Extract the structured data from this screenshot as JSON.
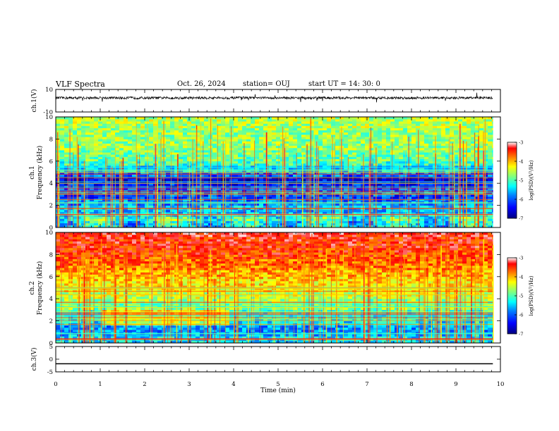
{
  "header": {
    "title": "VLF Spectra",
    "date": "Oct. 26, 2024",
    "station": "station= OUJ",
    "start": "start  UT =   14: 30: 0"
  },
  "chart_data": [
    {
      "type": "line",
      "panel": "ch1-waveform",
      "ylabel": "ch.1(V)",
      "ylim": [
        -10,
        10
      ],
      "yticks": [
        "10",
        "-10"
      ],
      "baseline": 2.5,
      "xlim": [
        0,
        10
      ],
      "x_data_end": 9.83
    },
    {
      "type": "heatmap",
      "panel": "ch1-spectrogram",
      "ylabel": "Frequency (kHz)",
      "ylabel_channel": "ch.1",
      "ylim": [
        0,
        10
      ],
      "yticks": [
        "0",
        "2",
        "4",
        "6",
        "8",
        "10"
      ],
      "colorbar": {
        "label": "log(PSD)(V²/Hz)",
        "range": [
          -7,
          -3
        ],
        "ticks": [
          "-3",
          "-4",
          "-5",
          "-6",
          "-7"
        ]
      },
      "colormap": [
        "#00007f",
        "#0000ff",
        "#0080ff",
        "#00ffff",
        "#80ff80",
        "#ffff00",
        "#ff8000",
        "#ff0000",
        "#ffffff"
      ],
      "rows": [
        {
          "f": 0.0,
          "v": -5.6
        },
        {
          "f": 0.5,
          "v": -5.3
        },
        {
          "f": 1.0,
          "v": -5.8
        },
        {
          "f": 1.5,
          "v": -5.7
        },
        {
          "f": 2.0,
          "v": -6.0
        },
        {
          "f": 2.5,
          "v": -6.2
        },
        {
          "f": 3.0,
          "v": -6.1
        },
        {
          "f": 3.5,
          "v": -6.4
        },
        {
          "f": 4.0,
          "v": -6.6
        },
        {
          "f": 4.5,
          "v": -6.1
        },
        {
          "f": 5.0,
          "v": -5.7
        },
        {
          "f": 5.5,
          "v": -5.3
        },
        {
          "f": 6.0,
          "v": -5.1
        },
        {
          "f": 6.5,
          "v": -5.0
        },
        {
          "f": 7.0,
          "v": -4.9
        },
        {
          "f": 7.5,
          "v": -4.9
        },
        {
          "f": 8.0,
          "v": -4.9
        },
        {
          "f": 8.5,
          "v": -4.9
        },
        {
          "f": 9.0,
          "v": -4.8
        },
        {
          "f": 9.5,
          "v": -4.8
        }
      ]
    },
    {
      "type": "heatmap",
      "panel": "ch2-spectrogram",
      "ylabel": "Frequency (kHz)",
      "ylabel_channel": "ch.2",
      "ylim": [
        0,
        10
      ],
      "yticks": [
        "0",
        "2",
        "4",
        "6",
        "8",
        "10"
      ],
      "colorbar": {
        "label": "log(PSD)(V²/Hz)",
        "range": [
          -7,
          -3
        ],
        "ticks": [
          "-3",
          "-4",
          "-5",
          "-6",
          "-7"
        ]
      },
      "rows": [
        {
          "f": 0.0,
          "v": -5.6
        },
        {
          "f": 0.5,
          "v": -5.8
        },
        {
          "f": 1.0,
          "v": -5.9
        },
        {
          "f": 1.5,
          "v": -5.6
        },
        {
          "f": 2.0,
          "v": -5.5
        },
        {
          "f": 2.5,
          "v": -5.3
        },
        {
          "f": 3.0,
          "v": -5.0
        },
        {
          "f": 3.5,
          "v": -4.9
        },
        {
          "f": 4.0,
          "v": -4.7
        },
        {
          "f": 4.5,
          "v": -4.5
        },
        {
          "f": 5.0,
          "v": -4.4
        },
        {
          "f": 5.5,
          "v": -4.3
        },
        {
          "f": 6.0,
          "v": -4.2
        },
        {
          "f": 6.5,
          "v": -4.0
        },
        {
          "f": 7.0,
          "v": -3.9
        },
        {
          "f": 7.5,
          "v": -3.8
        },
        {
          "f": 8.0,
          "v": -3.7
        },
        {
          "f": 8.5,
          "v": -3.6
        },
        {
          "f": 9.0,
          "v": -3.6
        },
        {
          "f": 9.5,
          "v": -3.5
        }
      ]
    },
    {
      "type": "line",
      "panel": "ch3-waveform",
      "ylabel": "ch.3(V)",
      "ylim": [
        -5,
        5
      ],
      "yticks": [
        "5",
        "0",
        "-5"
      ],
      "x": [
        0,
        9.83
      ],
      "y": [
        -1.8,
        -1.8
      ]
    }
  ],
  "xaxis": {
    "label": "Time (min)",
    "range": [
      0,
      10
    ],
    "ticks": [
      "0",
      "1",
      "2",
      "3",
      "4",
      "5",
      "6",
      "7",
      "8",
      "9",
      "10"
    ]
  }
}
